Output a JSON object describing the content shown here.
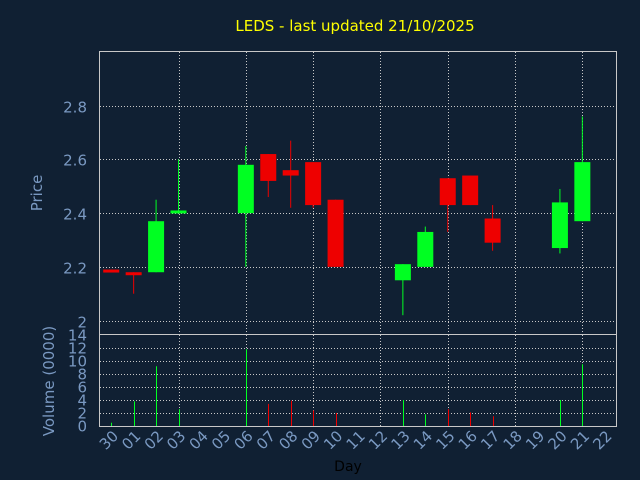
{
  "colors": {
    "background": "#102033",
    "axis_text": "#7a99c2",
    "title": "#ffff00",
    "day_label": "#000000",
    "grid": "#c8c8c8",
    "frame": "#c8c8c8",
    "up": "#00ff22",
    "down": "#ee0000"
  },
  "chart_data": [
    {
      "type": "candlestick",
      "title": "LEDS - last updated 21/10/2025",
      "ylabel": "Price",
      "ylim": [
        1.95,
        3.0
      ],
      "y_ticks": [
        2,
        2.2,
        2.4,
        2.6,
        2.8
      ],
      "y_tick_labels": [
        "2",
        "2.2",
        "2.4",
        "2.6",
        "2.8"
      ],
      "grid": true,
      "categories": [
        "30",
        "01",
        "02",
        "03",
        "04",
        "05",
        "06",
        "07",
        "08",
        "09",
        "10",
        "11",
        "12",
        "13",
        "14",
        "15",
        "16",
        "17",
        "18",
        "19",
        "20",
        "21",
        "22"
      ],
      "candles": [
        {
          "day": "30",
          "open": 2.19,
          "high": 2.19,
          "low": 2.18,
          "close": 2.18
        },
        {
          "day": "01",
          "open": 2.18,
          "high": 2.18,
          "low": 2.1,
          "close": 2.17
        },
        {
          "day": "02",
          "open": 2.18,
          "high": 2.45,
          "low": 2.18,
          "close": 2.37
        },
        {
          "day": "03",
          "open": 2.4,
          "high": 2.6,
          "low": 2.4,
          "close": 2.41
        },
        {
          "day": "06",
          "open": 2.4,
          "high": 2.65,
          "low": 2.2,
          "close": 2.58
        },
        {
          "day": "07",
          "open": 2.62,
          "high": 2.62,
          "low": 2.46,
          "close": 2.52
        },
        {
          "day": "08",
          "open": 2.56,
          "high": 2.67,
          "low": 2.42,
          "close": 2.54
        },
        {
          "day": "09",
          "open": 2.59,
          "high": 2.59,
          "low": 2.42,
          "close": 2.43
        },
        {
          "day": "10",
          "open": 2.45,
          "high": 2.45,
          "low": 2.2,
          "close": 2.2
        },
        {
          "day": "13",
          "open": 2.15,
          "high": 2.21,
          "low": 2.02,
          "close": 2.21
        },
        {
          "day": "14",
          "open": 2.2,
          "high": 2.35,
          "low": 2.2,
          "close": 2.33
        },
        {
          "day": "15",
          "open": 2.53,
          "high": 2.53,
          "low": 2.33,
          "close": 2.43
        },
        {
          "day": "16",
          "open": 2.54,
          "high": 2.54,
          "low": 2.43,
          "close": 2.43
        },
        {
          "day": "17",
          "open": 2.38,
          "high": 2.43,
          "low": 2.26,
          "close": 2.29
        },
        {
          "day": "20",
          "open": 2.27,
          "high": 2.49,
          "low": 2.25,
          "close": 2.44
        },
        {
          "day": "21",
          "open": 2.37,
          "high": 2.76,
          "low": 2.37,
          "close": 2.59
        }
      ]
    },
    {
      "type": "bar",
      "ylabel": "Volume (0000)",
      "xlabel": "Day",
      "ylim": [
        0,
        14
      ],
      "y_ticks": [
        0,
        2,
        4,
        6,
        8,
        10,
        12,
        14
      ],
      "y_tick_labels": [
        "0",
        "2",
        "4",
        "6",
        "8",
        "10",
        "12",
        "14"
      ],
      "grid": true,
      "categories": [
        "30",
        "01",
        "02",
        "03",
        "04",
        "05",
        "06",
        "07",
        "08",
        "09",
        "10",
        "11",
        "12",
        "13",
        "14",
        "15",
        "16",
        "17",
        "18",
        "19",
        "20",
        "21",
        "22"
      ],
      "x_tick_labels": [
        "30",
        "01",
        "02",
        "03",
        "04",
        "05",
        "06",
        "07",
        "08",
        "09",
        "10",
        "11",
        "12",
        "13",
        "14",
        "15",
        "16",
        "17",
        "18",
        "19",
        "20",
        "21",
        "22"
      ],
      "bars": [
        {
          "day": "30",
          "value": 0.5,
          "direction": "up"
        },
        {
          "day": "01",
          "value": 3.8,
          "direction": "up"
        },
        {
          "day": "02",
          "value": 9.2,
          "direction": "up"
        },
        {
          "day": "03",
          "value": 2.6,
          "direction": "up"
        },
        {
          "day": "06",
          "value": 11.8,
          "direction": "up"
        },
        {
          "day": "07",
          "value": 3.4,
          "direction": "down"
        },
        {
          "day": "08",
          "value": 3.9,
          "direction": "down"
        },
        {
          "day": "09",
          "value": 2.4,
          "direction": "down"
        },
        {
          "day": "10",
          "value": 2.0,
          "direction": "down"
        },
        {
          "day": "13",
          "value": 4.0,
          "direction": "up"
        },
        {
          "day": "14",
          "value": 1.8,
          "direction": "up"
        },
        {
          "day": "15",
          "value": 2.6,
          "direction": "down"
        },
        {
          "day": "16",
          "value": 2.1,
          "direction": "down"
        },
        {
          "day": "17",
          "value": 1.5,
          "direction": "down"
        },
        {
          "day": "20",
          "value": 4.0,
          "direction": "up"
        },
        {
          "day": "21",
          "value": 9.5,
          "direction": "up"
        }
      ]
    }
  ]
}
